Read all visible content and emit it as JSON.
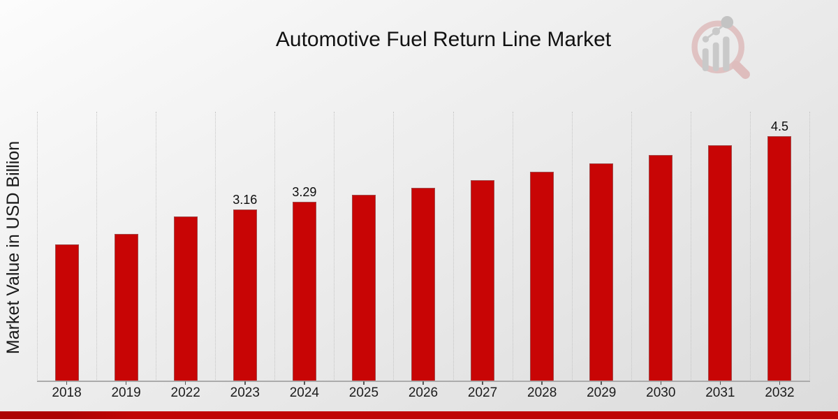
{
  "title": "Automotive Fuel Return Line Market",
  "y_axis_label": "Market Value in USD Billion",
  "watermark_icon": "magnifier-bar-chart-logo",
  "colors": {
    "bar": "#c80505",
    "bar_edge": "#828282",
    "gridline": "#c5c5c5",
    "axis_line": "#ababab",
    "footer_bar": "#b80505",
    "title_text": "#111111",
    "tick_text": "#1c1c1c",
    "watermark_pink": "#debcbc",
    "watermark_gray": "#c4c4c4"
  },
  "chart_data": {
    "type": "bar",
    "title": "Automotive Fuel Return Line Market",
    "xlabel": "",
    "ylabel": "Market Value in USD Billion",
    "categories": [
      "2018",
      "2019",
      "2022",
      "2023",
      "2024",
      "2025",
      "2026",
      "2027",
      "2028",
      "2029",
      "2030",
      "2031",
      "2032"
    ],
    "values": [
      2.51,
      2.7,
      3.03,
      3.16,
      3.29,
      3.42,
      3.55,
      3.69,
      3.85,
      4.0,
      4.16,
      4.33,
      4.5
    ],
    "data_labels": {
      "2023": "3.16",
      "2024": "3.29",
      "2032": "4.5"
    },
    "bar_color": "#c80505",
    "ylim": [
      0,
      4.95
    ],
    "grid": "vertical dotted lines at category boundaries",
    "legend": "none",
    "y_ticks_shown": false
  }
}
